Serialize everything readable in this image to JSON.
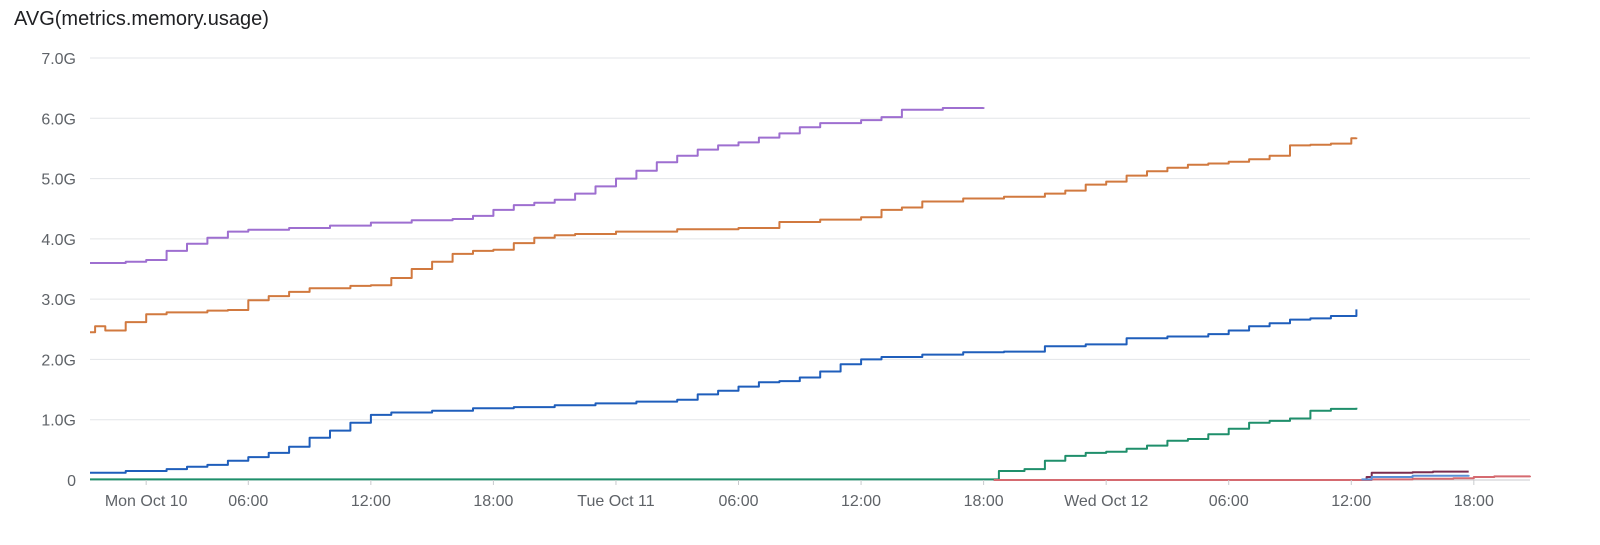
{
  "chart_data": {
    "type": "line",
    "title": "AVG(metrics.memory.usage)",
    "xlabel": "",
    "ylabel": "",
    "ylim": [
      0,
      7
    ],
    "y_ticks": [
      {
        "value": 0,
        "label": "0"
      },
      {
        "value": 1,
        "label": "1.0G"
      },
      {
        "value": 2,
        "label": "2.0G"
      },
      {
        "value": 3,
        "label": "3.0G"
      },
      {
        "value": 4,
        "label": "4.0G"
      },
      {
        "value": 5,
        "label": "5.0G"
      },
      {
        "value": 6,
        "label": "6.0G"
      },
      {
        "value": 7,
        "label": "7.0G"
      }
    ],
    "xlim": [
      "2022-10-09T22:15",
      "2022-10-12T20:45"
    ],
    "x_ticks": [
      {
        "value": "2022-10-10T01:00",
        "label": "Mon Oct 10"
      },
      {
        "value": "2022-10-10T06:00",
        "label": "06:00"
      },
      {
        "value": "2022-10-10T12:00",
        "label": "12:00"
      },
      {
        "value": "2022-10-10T18:00",
        "label": "18:00"
      },
      {
        "value": "2022-10-11T00:00",
        "label": "Tue Oct 11"
      },
      {
        "value": "2022-10-11T06:00",
        "label": "06:00"
      },
      {
        "value": "2022-10-11T12:00",
        "label": "12:00"
      },
      {
        "value": "2022-10-11T18:00",
        "label": "18:00"
      },
      {
        "value": "2022-10-12T00:00",
        "label": "Wed Oct 12"
      },
      {
        "value": "2022-10-12T06:00",
        "label": "06:00"
      },
      {
        "value": "2022-10-12T12:00",
        "label": "12:00"
      },
      {
        "value": "2022-10-12T18:00",
        "label": "18:00"
      }
    ],
    "grid": true,
    "legend": "none",
    "series": [
      {
        "color": "#9e6fd0",
        "x": [
          "2022-10-09T22:15",
          "2022-10-10T00:00",
          "2022-10-10T01:00",
          "2022-10-10T02:00",
          "2022-10-10T03:00",
          "2022-10-10T04:00",
          "2022-10-10T05:00",
          "2022-10-10T06:00",
          "2022-10-10T08:00",
          "2022-10-10T10:00",
          "2022-10-10T12:00",
          "2022-10-10T14:00",
          "2022-10-10T16:00",
          "2022-10-10T17:00",
          "2022-10-10T18:00",
          "2022-10-10T19:00",
          "2022-10-10T20:00",
          "2022-10-10T21:00",
          "2022-10-10T22:00",
          "2022-10-10T23:00",
          "2022-10-11T00:00",
          "2022-10-11T01:00",
          "2022-10-11T02:00",
          "2022-10-11T03:00",
          "2022-10-11T04:00",
          "2022-10-11T05:00",
          "2022-10-11T06:00",
          "2022-10-11T07:00",
          "2022-10-11T08:00",
          "2022-10-11T09:00",
          "2022-10-11T10:00",
          "2022-10-11T12:00",
          "2022-10-11T13:00",
          "2022-10-11T14:00",
          "2022-10-11T16:00",
          "2022-10-11T18:00"
        ],
        "y": [
          3.6,
          3.62,
          3.65,
          3.8,
          3.92,
          4.02,
          4.12,
          4.15,
          4.18,
          4.22,
          4.27,
          4.31,
          4.33,
          4.38,
          4.48,
          4.56,
          4.6,
          4.65,
          4.75,
          4.87,
          5.0,
          5.13,
          5.27,
          5.38,
          5.48,
          5.55,
          5.6,
          5.68,
          5.75,
          5.85,
          5.92,
          5.97,
          6.02,
          6.14,
          6.17,
          6.18
        ]
      },
      {
        "color": "#d1793f",
        "x": [
          "2022-10-09T22:15",
          "2022-10-09T22:30",
          "2022-10-09T23:00",
          "2022-10-10T00:00",
          "2022-10-10T01:00",
          "2022-10-10T02:00",
          "2022-10-10T04:00",
          "2022-10-10T05:00",
          "2022-10-10T06:00",
          "2022-10-10T07:00",
          "2022-10-10T08:00",
          "2022-10-10T09:00",
          "2022-10-10T11:00",
          "2022-10-10T12:00",
          "2022-10-10T13:00",
          "2022-10-10T14:00",
          "2022-10-10T15:00",
          "2022-10-10T16:00",
          "2022-10-10T17:00",
          "2022-10-10T18:00",
          "2022-10-10T19:00",
          "2022-10-10T20:00",
          "2022-10-10T21:00",
          "2022-10-10T22:00",
          "2022-10-11T00:00",
          "2022-10-11T03:00",
          "2022-10-11T06:00",
          "2022-10-11T08:00",
          "2022-10-11T10:00",
          "2022-10-11T12:00",
          "2022-10-11T13:00",
          "2022-10-11T14:00",
          "2022-10-11T15:00",
          "2022-10-11T17:00",
          "2022-10-11T19:00",
          "2022-10-11T21:00",
          "2022-10-11T22:00",
          "2022-10-11T23:00",
          "2022-10-12T00:00",
          "2022-10-12T01:00",
          "2022-10-12T02:00",
          "2022-10-12T03:00",
          "2022-10-12T04:00",
          "2022-10-12T05:00",
          "2022-10-12T06:00",
          "2022-10-12T07:00",
          "2022-10-12T08:00",
          "2022-10-12T09:00",
          "2022-10-12T10:00",
          "2022-10-12T11:00",
          "2022-10-12T12:00",
          "2022-10-12T12:15"
        ],
        "y": [
          2.45,
          2.55,
          2.48,
          2.62,
          2.75,
          2.78,
          2.81,
          2.82,
          2.98,
          3.05,
          3.12,
          3.18,
          3.22,
          3.23,
          3.35,
          3.5,
          3.62,
          3.75,
          3.8,
          3.82,
          3.93,
          4.02,
          4.06,
          4.08,
          4.12,
          4.16,
          4.18,
          4.28,
          4.32,
          4.36,
          4.48,
          4.52,
          4.62,
          4.67,
          4.7,
          4.75,
          4.8,
          4.9,
          4.95,
          5.05,
          5.12,
          5.18,
          5.23,
          5.25,
          5.28,
          5.32,
          5.38,
          5.55,
          5.56,
          5.58,
          5.67,
          5.68
        ]
      },
      {
        "color": "#1f5ebb",
        "x": [
          "2022-10-09T22:15",
          "2022-10-10T00:00",
          "2022-10-10T02:00",
          "2022-10-10T03:00",
          "2022-10-10T04:00",
          "2022-10-10T05:00",
          "2022-10-10T06:00",
          "2022-10-10T07:00",
          "2022-10-10T08:00",
          "2022-10-10T09:00",
          "2022-10-10T10:00",
          "2022-10-10T11:00",
          "2022-10-10T12:00",
          "2022-10-10T13:00",
          "2022-10-10T15:00",
          "2022-10-10T17:00",
          "2022-10-10T19:00",
          "2022-10-10T21:00",
          "2022-10-10T23:00",
          "2022-10-11T01:00",
          "2022-10-11T03:00",
          "2022-10-11T04:00",
          "2022-10-11T05:00",
          "2022-10-11T06:00",
          "2022-10-11T07:00",
          "2022-10-11T08:00",
          "2022-10-11T09:00",
          "2022-10-11T10:00",
          "2022-10-11T11:00",
          "2022-10-11T12:00",
          "2022-10-11T13:00",
          "2022-10-11T15:00",
          "2022-10-11T17:00",
          "2022-10-11T19:00",
          "2022-10-11T21:00",
          "2022-10-11T23:00",
          "2022-10-12T01:00",
          "2022-10-12T03:00",
          "2022-10-12T05:00",
          "2022-10-12T06:00",
          "2022-10-12T07:00",
          "2022-10-12T08:00",
          "2022-10-12T09:00",
          "2022-10-12T10:00",
          "2022-10-12T11:00",
          "2022-10-12T12:15"
        ],
        "y": [
          0.12,
          0.15,
          0.18,
          0.22,
          0.25,
          0.32,
          0.38,
          0.45,
          0.55,
          0.7,
          0.82,
          0.95,
          1.08,
          1.12,
          1.15,
          1.19,
          1.21,
          1.24,
          1.27,
          1.3,
          1.33,
          1.42,
          1.48,
          1.55,
          1.62,
          1.64,
          1.7,
          1.8,
          1.92,
          2.0,
          2.04,
          2.08,
          2.12,
          2.13,
          2.22,
          2.25,
          2.35,
          2.38,
          2.42,
          2.48,
          2.55,
          2.6,
          2.66,
          2.68,
          2.72,
          2.83
        ]
      },
      {
        "color": "#1f8f6b",
        "x": [
          "2022-10-09T22:15",
          "2022-10-11T18:30",
          "2022-10-11T18:45",
          "2022-10-11T20:00",
          "2022-10-11T21:00",
          "2022-10-11T22:00",
          "2022-10-11T23:00",
          "2022-10-12T00:00",
          "2022-10-12T01:00",
          "2022-10-12T02:00",
          "2022-10-12T03:00",
          "2022-10-12T04:00",
          "2022-10-12T05:00",
          "2022-10-12T06:00",
          "2022-10-12T07:00",
          "2022-10-12T08:00",
          "2022-10-12T09:00",
          "2022-10-12T10:00",
          "2022-10-12T11:00",
          "2022-10-12T12:15"
        ],
        "y": [
          0.01,
          0.01,
          0.15,
          0.18,
          0.32,
          0.4,
          0.45,
          0.47,
          0.52,
          0.57,
          0.65,
          0.68,
          0.76,
          0.85,
          0.95,
          0.98,
          1.02,
          1.15,
          1.18,
          1.2
        ]
      },
      {
        "color": "#7b2d4f",
        "x": [
          "2022-10-11T18:30",
          "2022-10-12T12:00",
          "2022-10-12T12:45",
          "2022-10-12T13:00",
          "2022-10-12T15:00",
          "2022-10-12T16:00",
          "2022-10-12T17:45"
        ],
        "y": [
          0.0,
          0.0,
          0.05,
          0.12,
          0.13,
          0.14,
          0.14
        ]
      },
      {
        "color": "#d56a70",
        "x": [
          "2022-10-11T18:30",
          "2022-10-12T13:00",
          "2022-10-12T15:00",
          "2022-10-12T17:00",
          "2022-10-12T18:00",
          "2022-10-12T19:00",
          "2022-10-12T20:45"
        ],
        "y": [
          0.0,
          0.01,
          0.02,
          0.03,
          0.05,
          0.06,
          0.07
        ]
      },
      {
        "color": "#5a8fd6",
        "x": [
          "2022-10-12T12:30",
          "2022-10-12T13:00",
          "2022-10-12T15:00",
          "2022-10-12T17:45"
        ],
        "y": [
          0.01,
          0.05,
          0.07,
          0.08
        ]
      }
    ]
  }
}
